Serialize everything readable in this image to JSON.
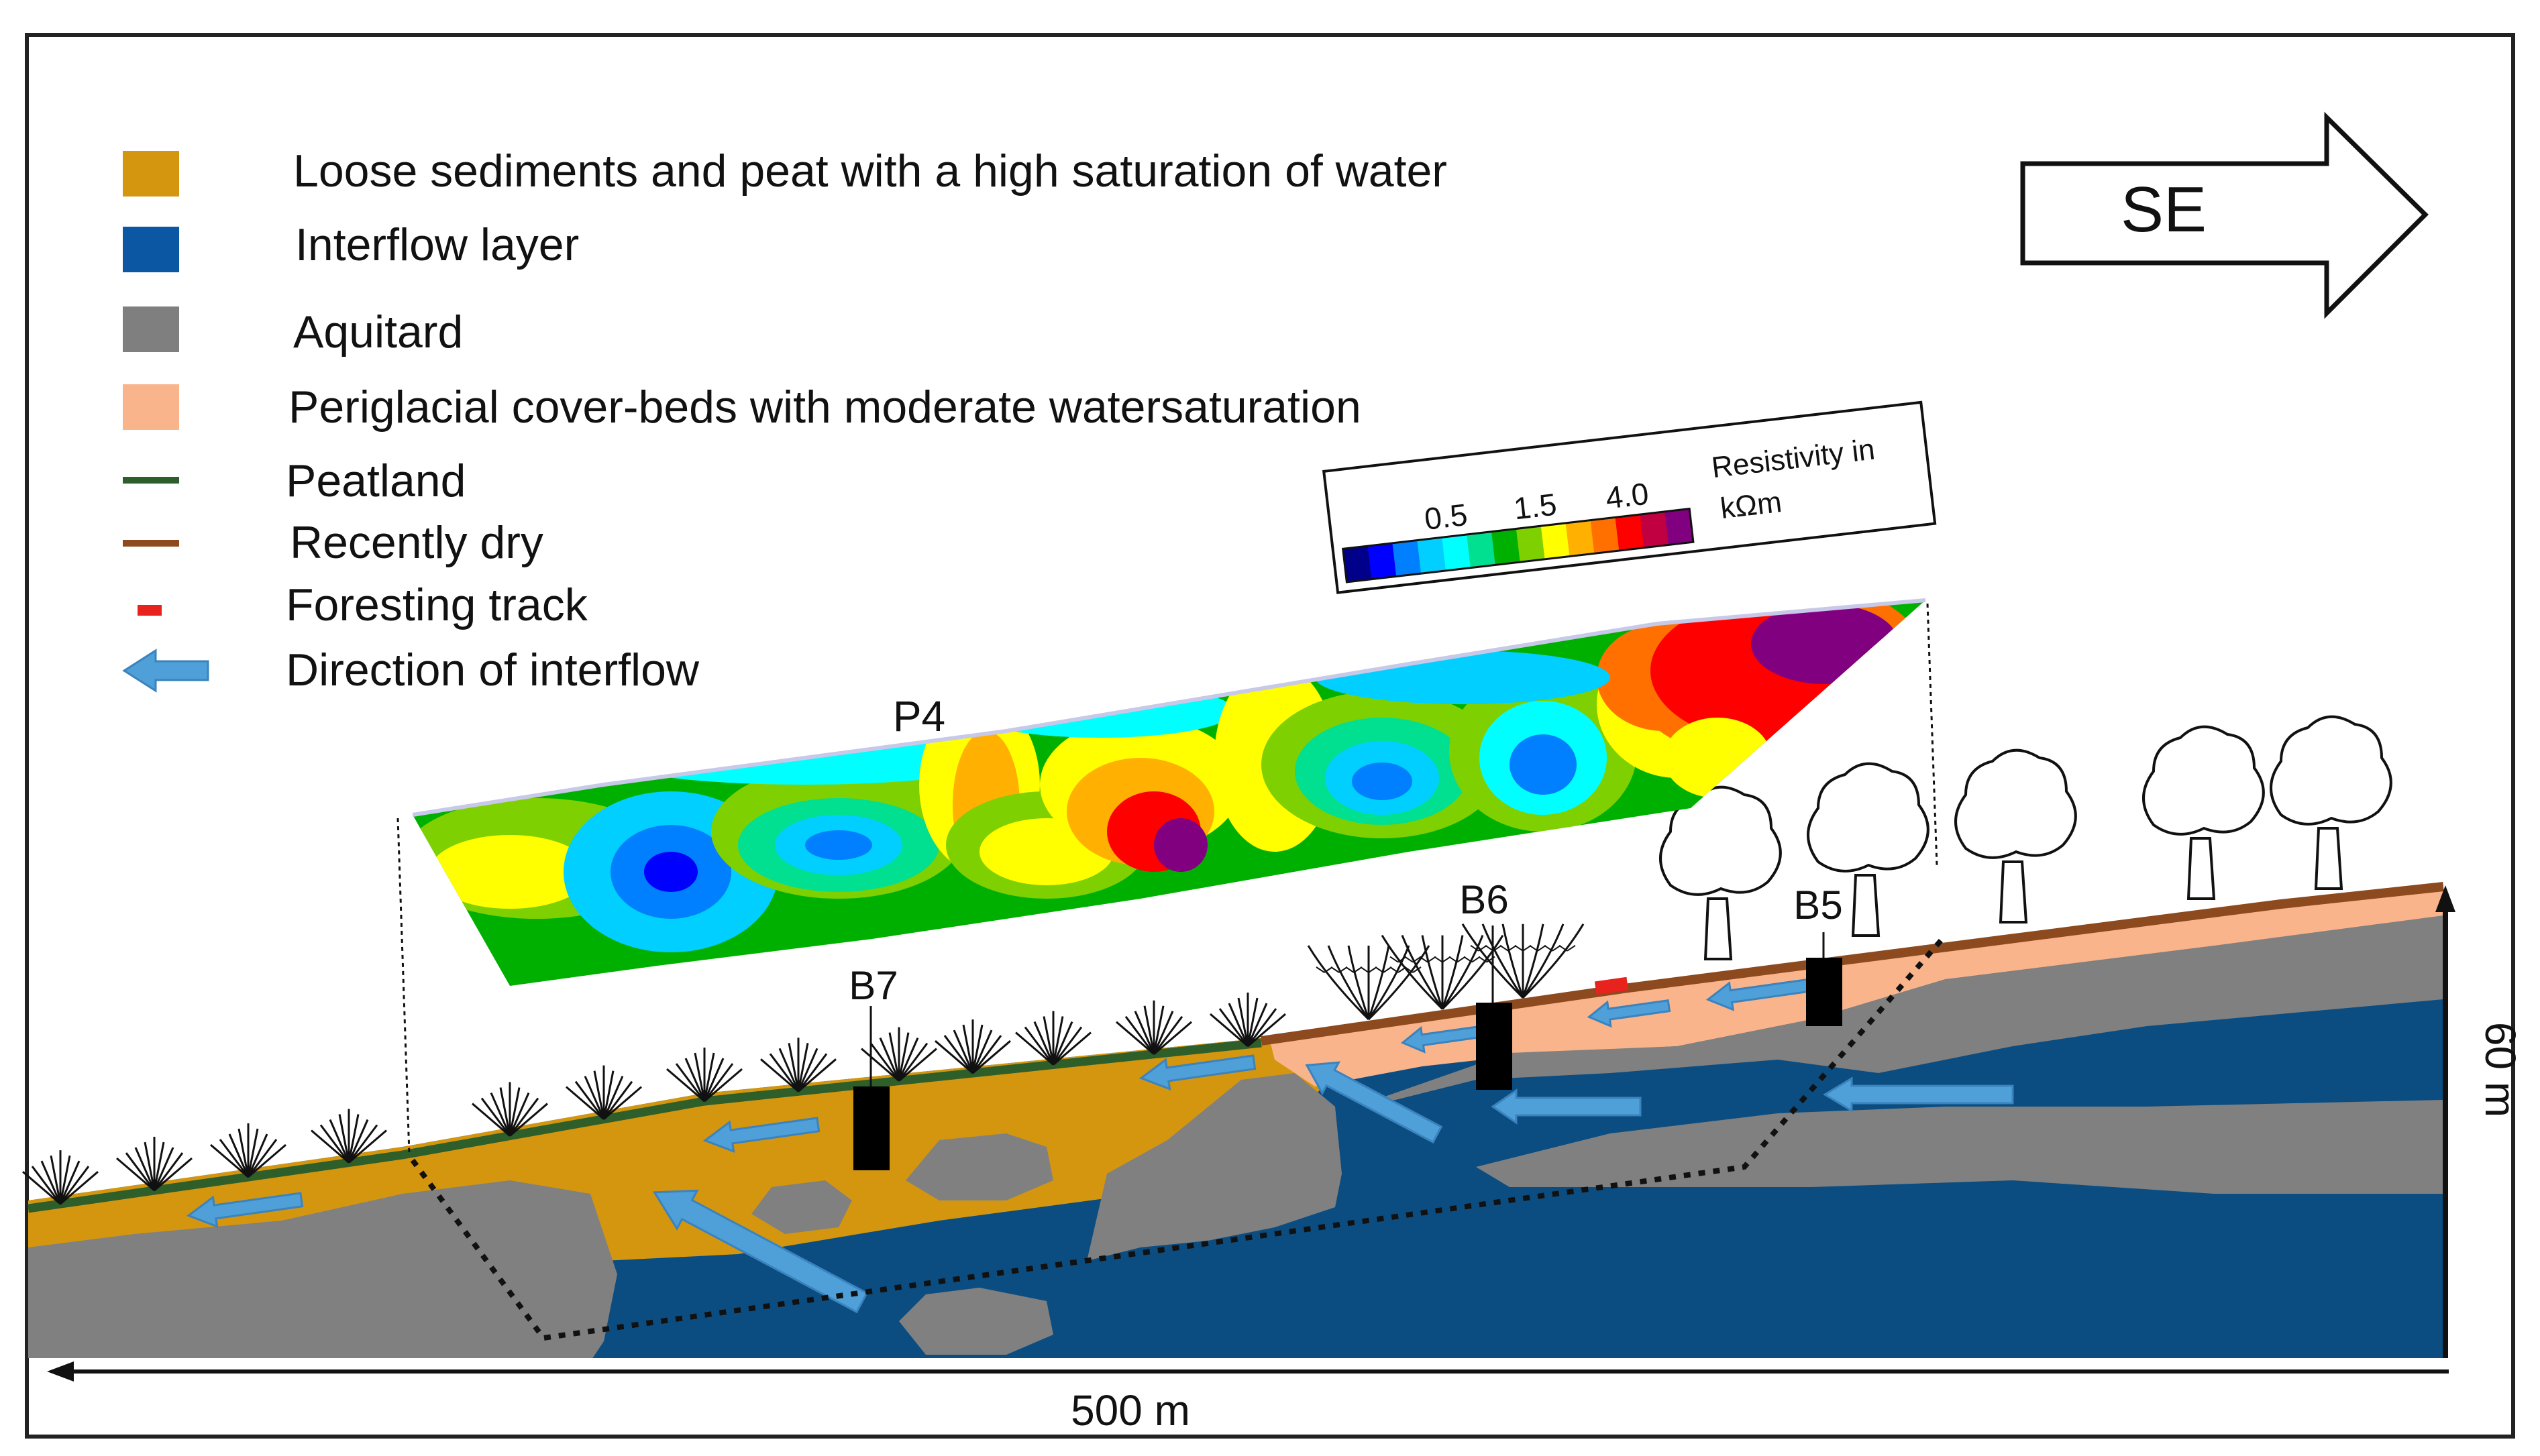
{
  "legend": {
    "items": [
      {
        "label": "Loose sediments and peat with a high saturation of water",
        "color": "#D4960E",
        "kind": "swatch"
      },
      {
        "label": "Interflow layer",
        "color": "#0B57A4",
        "kind": "swatch"
      },
      {
        "label": "Aquitard",
        "color": "#7F7F7F",
        "kind": "swatch"
      },
      {
        "label": "Periglacial cover-beds with moderate watersaturation",
        "color": "#F9B48C",
        "kind": "swatch"
      },
      {
        "label": "Peatland",
        "color": "#2E5E2A",
        "kind": "line"
      },
      {
        "label": "Recently dry",
        "color": "#8C4A1E",
        "kind": "line"
      },
      {
        "label": "Foresting track",
        "color": "#E8231E",
        "kind": "dash"
      },
      {
        "label": "Direction of interflow",
        "color": "#4F9FD9",
        "kind": "arrow"
      }
    ]
  },
  "direction": {
    "label": "SE"
  },
  "colorbar": {
    "title_line1": "Resistivity in",
    "title_line2": "kΩm",
    "ticks": [
      "0.5",
      "1.5",
      "4.0"
    ],
    "colors": [
      "#00008B",
      "#0000FF",
      "#007FFF",
      "#00CFFF",
      "#00FFFF",
      "#00E090",
      "#00B000",
      "#7FD000",
      "#FFFF00",
      "#FFB000",
      "#FF7000",
      "#FF0000",
      "#C00040",
      "#800080"
    ]
  },
  "profile": {
    "label": "P4"
  },
  "boreholes": [
    {
      "label": "B7"
    },
    {
      "label": "B6"
    },
    {
      "label": "B5"
    }
  ],
  "scale": {
    "horizontal": "500 m",
    "vertical": "60 m"
  },
  "colors": {
    "loose_sediments": "#D4960E",
    "interflow": "#0B4D80",
    "aquitard": "#808080",
    "periglacial": "#F9B48C",
    "peatland": "#2E5E2A",
    "recently_dry": "#8C4A1E",
    "track": "#E8231E",
    "interflow_arrow": "#4F9FD9"
  }
}
